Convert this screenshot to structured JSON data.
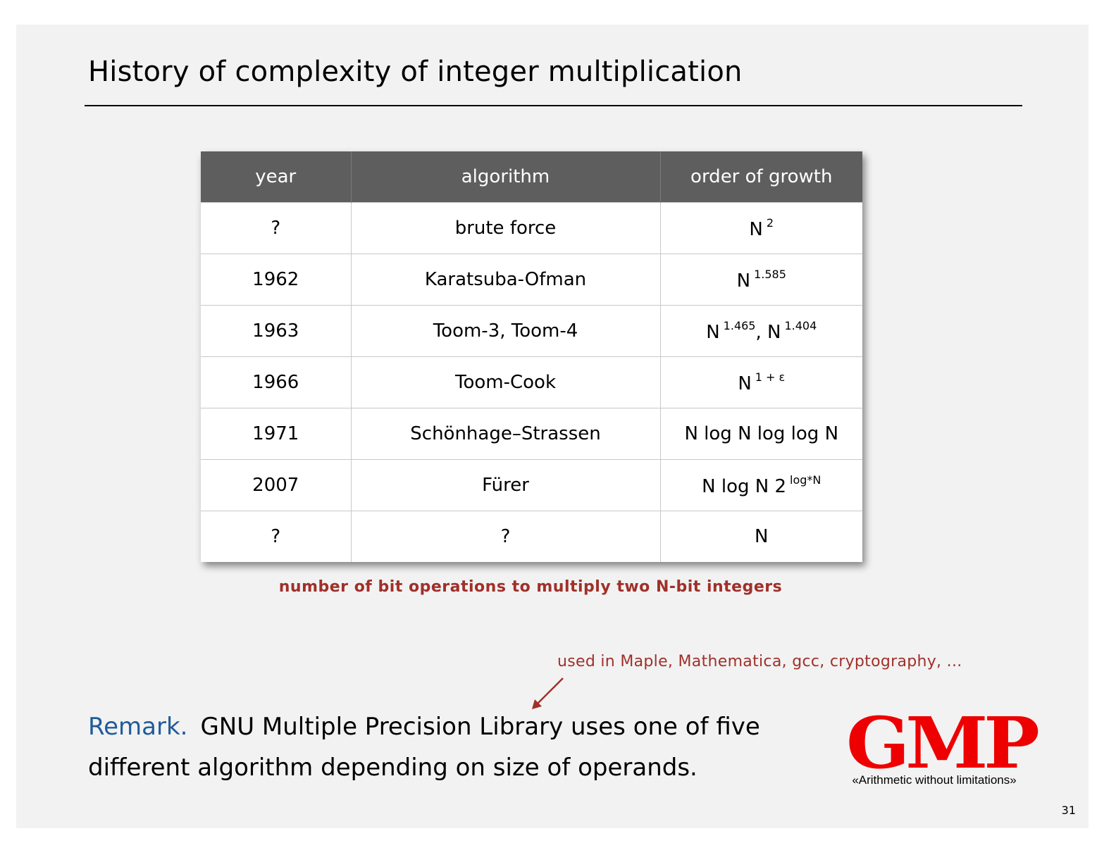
{
  "slide": {
    "title": "History of complexity of integer multiplication",
    "page_number": "31"
  },
  "table": {
    "headers": [
      "year",
      "algorithm",
      "order of growth"
    ],
    "rows": [
      {
        "year": "?",
        "algorithm": "brute force",
        "growth_base": "N",
        "growth_exp": "2",
        "growth_base2": "",
        "growth_exp2": ""
      },
      {
        "year": "1962",
        "algorithm": "Karatsuba-Ofman",
        "growth_base": "N",
        "growth_exp": "1.585",
        "growth_base2": "",
        "growth_exp2": ""
      },
      {
        "year": "1963",
        "algorithm": "Toom-3, Toom-4",
        "growth_base": "N",
        "growth_exp": "1.465",
        "growth_base2": ", N",
        "growth_exp2": "1.404"
      },
      {
        "year": "1966",
        "algorithm": "Toom-Cook",
        "growth_base": "N",
        "growth_exp": "1 + ε",
        "growth_base2": "",
        "growth_exp2": ""
      },
      {
        "year": "1971",
        "algorithm": "Schönhage–Strassen",
        "growth_base": "N log N log log N",
        "growth_exp": "",
        "growth_base2": "",
        "growth_exp2": ""
      },
      {
        "year": "2007",
        "algorithm": "Fürer",
        "growth_base": "N log N 2",
        "growth_exp": "log*N",
        "growth_base2": "",
        "growth_exp2": ""
      },
      {
        "year": "?",
        "algorithm": "?",
        "growth_base": "N",
        "growth_exp": "",
        "growth_base2": "",
        "growth_exp2": ""
      }
    ],
    "caption": "number of bit operations to multiply two N-bit integers"
  },
  "annotation": {
    "note": "used in Maple, Mathematica, gcc, cryptography, ..."
  },
  "remark": {
    "label": "Remark.",
    "text": "GNU Multiple Precision Library uses one of five different algorithm depending on size of operands."
  },
  "logo": {
    "name": "GMP",
    "tagline": "«Arithmetic without limitations»",
    "color": "#ee0000"
  },
  "colors": {
    "header_bg": "#5e5e5e",
    "caption": "#a0302a",
    "remark_label": "#1f5c99"
  }
}
